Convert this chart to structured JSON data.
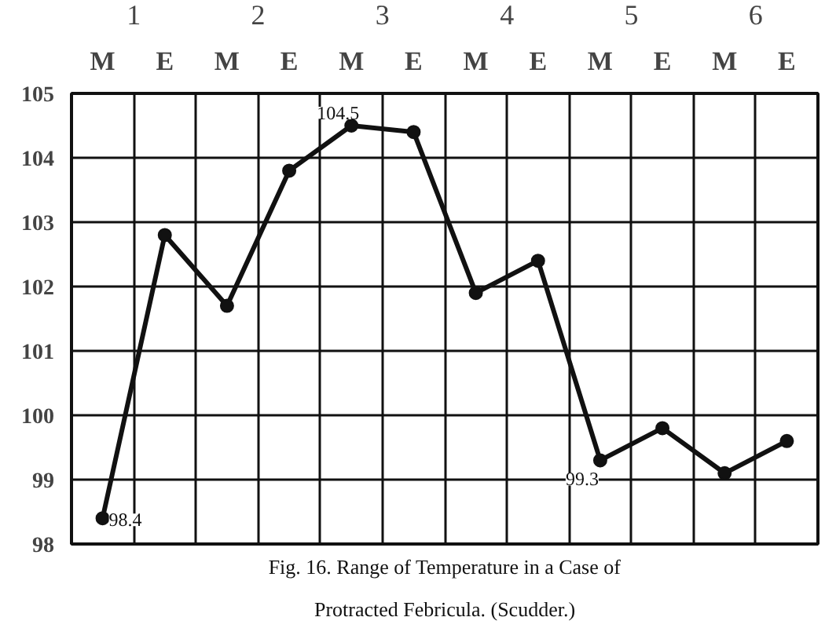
{
  "chart_data": {
    "type": "line",
    "title": "Fig. 16. Range of Temperature in a Case of Protracted Febricula. (Scudder.)",
    "categories": [
      "M",
      "E",
      "M",
      "E",
      "M",
      "E",
      "M",
      "E",
      "M",
      "E",
      "M",
      "E"
    ],
    "annotations": [
      "1",
      "2",
      "3",
      "4",
      "5",
      "6"
    ],
    "series": [
      {
        "color": "#111111",
        "values": [
          98.4,
          102.8,
          101.7,
          103.8,
          104.5,
          104.4,
          101.9,
          102.4,
          99.3,
          99.8,
          99.1,
          99.6
        ],
        "value_labels": [
          "98.4",
          null,
          null,
          null,
          "104.5",
          null,
          null,
          null,
          "99.3",
          null,
          null,
          null
        ]
      }
    ],
    "ylim": [
      98,
      105
    ],
    "yticks": [
      98,
      99,
      100,
      101,
      102,
      103,
      104,
      105
    ],
    "grid": true,
    "marker": "circle",
    "line_style": "solid"
  }
}
